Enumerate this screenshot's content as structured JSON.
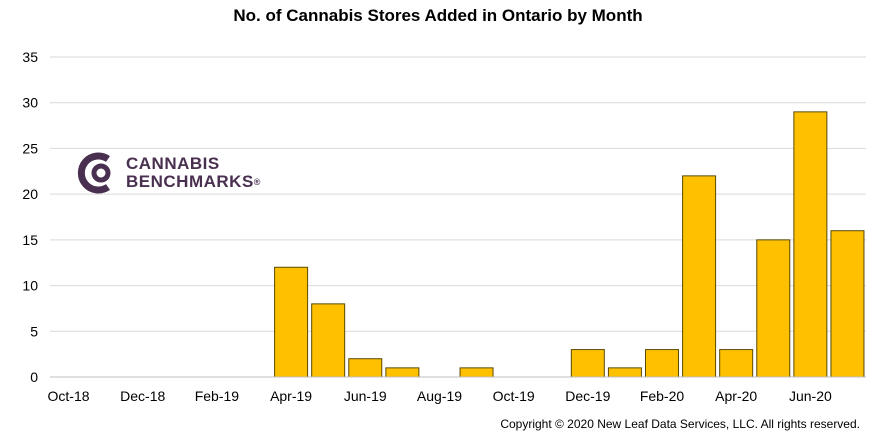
{
  "chart_data": {
    "type": "bar",
    "title": "No. of Cannabis Stores Added in Ontario by Month",
    "categories": [
      "Oct-18",
      "Nov-18",
      "Dec-18",
      "Jan-19",
      "Feb-19",
      "Mar-19",
      "Apr-19",
      "May-19",
      "Jun-19",
      "Jul-19",
      "Aug-19",
      "Sep-19",
      "Oct-19",
      "Nov-19",
      "Dec-19",
      "Jan-20",
      "Feb-20",
      "Mar-20",
      "Apr-20",
      "May-20",
      "Jun-20",
      "Jul-20"
    ],
    "tick_labels": [
      "Oct-18",
      "Dec-18",
      "Feb-19",
      "Apr-19",
      "Jun-19",
      "Aug-19",
      "Oct-19",
      "Dec-19",
      "Feb-20",
      "Apr-20",
      "Jun-20"
    ],
    "values": [
      0,
      0,
      0,
      0,
      0,
      0,
      12,
      8,
      2,
      1,
      0,
      1,
      0,
      0,
      3,
      1,
      3,
      22,
      3,
      15,
      29,
      16
    ],
    "ylim": [
      0,
      35
    ],
    "yticks": [
      0,
      5,
      10,
      15,
      20,
      25,
      30,
      35
    ],
    "xlabel": "",
    "ylabel": "",
    "grid": true,
    "bar_color": "#FFC000",
    "bar_edge_color": "#5a4a00"
  },
  "logo": {
    "line1": "CANNABIS",
    "line2": "BENCHMARKS",
    "mark": "®",
    "color": "#4a3050"
  },
  "copyright": "Copyright © 2020 New Leaf Data Services, LLC. All rights reserved."
}
